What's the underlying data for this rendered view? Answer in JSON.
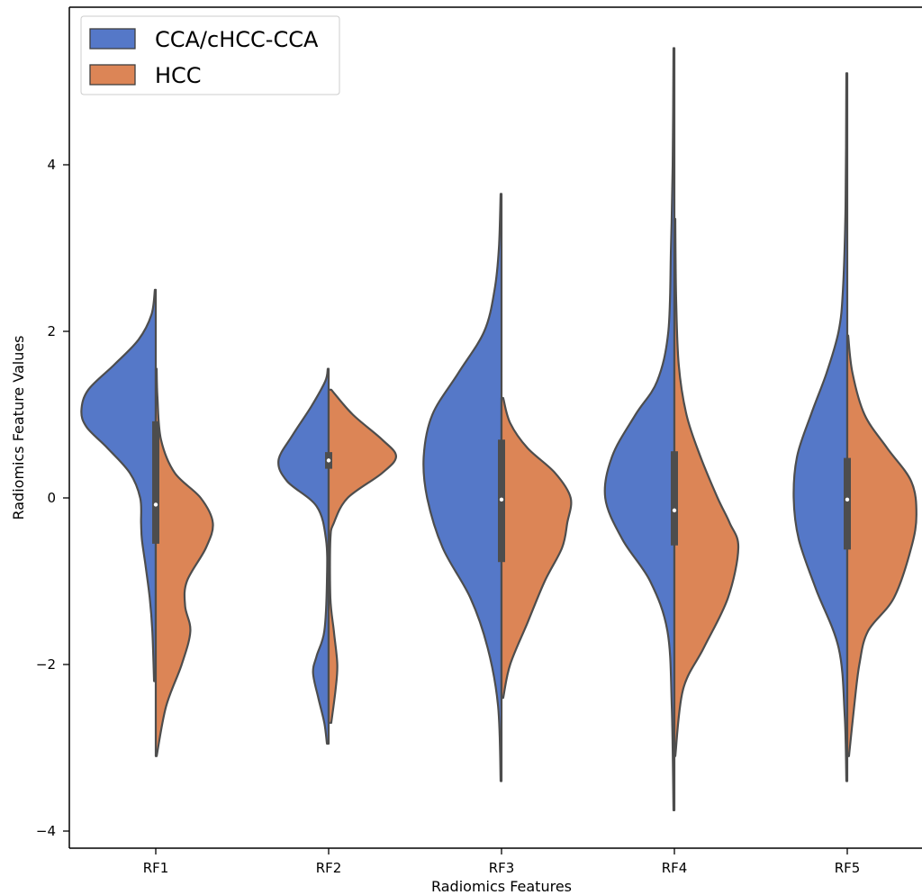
{
  "chart_data": {
    "type": "violin",
    "split": true,
    "xlabel": "Radiomics Features",
    "ylabel": "Radiomics Feature Values",
    "categories": [
      "RF1",
      "RF2",
      "RF3",
      "RF4",
      "RF5"
    ],
    "yticks": [
      -4,
      -2,
      0,
      2,
      4
    ],
    "ytick_labels": [
      "−4",
      "−2",
      "0",
      "2",
      "4"
    ],
    "ylim": [
      -4.1,
      5.95
    ],
    "grid": false,
    "legend": {
      "placement": "top-left",
      "entries": [
        {
          "label": "CCA/cHCC-CCA",
          "color": "#5578c8"
        },
        {
          "label": "HCC",
          "color": "#dc8556"
        }
      ]
    },
    "series": [
      {
        "name": "CCA/cHCC-CCA",
        "color": "#5578c8",
        "side": "left",
        "violins": [
          {
            "category": "RF1",
            "min": -2.2,
            "max": 2.5,
            "profile": [
              [
                -2.2,
                0.02
              ],
              [
                -1.6,
                0.04
              ],
              [
                -1.2,
                0.07
              ],
              [
                -0.8,
                0.12
              ],
              [
                -0.5,
                0.16
              ],
              [
                -0.3,
                0.17
              ],
              [
                0.0,
                0.18
              ],
              [
                0.3,
                0.3
              ],
              [
                0.6,
                0.56
              ],
              [
                0.85,
                0.8
              ],
              [
                1.05,
                0.86
              ],
              [
                1.3,
                0.78
              ],
              [
                1.6,
                0.48
              ],
              [
                1.9,
                0.2
              ],
              [
                2.2,
                0.05
              ],
              [
                2.5,
                0.01
              ]
            ]
          },
          {
            "category": "RF2",
            "min": -2.95,
            "max": 1.55,
            "profile": [
              [
                -2.95,
                0.02
              ],
              [
                -2.7,
                0.05
              ],
              [
                -2.4,
                0.12
              ],
              [
                -2.1,
                0.18
              ],
              [
                -1.9,
                0.14
              ],
              [
                -1.6,
                0.05
              ],
              [
                -1.0,
                0.02
              ],
              [
                -0.5,
                0.03
              ],
              [
                -0.1,
                0.14
              ],
              [
                0.2,
                0.48
              ],
              [
                0.45,
                0.58
              ],
              [
                0.75,
                0.42
              ],
              [
                1.1,
                0.2
              ],
              [
                1.4,
                0.04
              ],
              [
                1.55,
                0.01
              ]
            ]
          },
          {
            "category": "RF3",
            "min": -3.4,
            "max": 3.65,
            "profile": [
              [
                -3.4,
                0.01
              ],
              [
                -2.5,
                0.04
              ],
              [
                -1.8,
                0.16
              ],
              [
                -1.2,
                0.36
              ],
              [
                -0.6,
                0.68
              ],
              [
                0.0,
                0.86
              ],
              [
                0.5,
                0.9
              ],
              [
                1.0,
                0.8
              ],
              [
                1.5,
                0.5
              ],
              [
                2.0,
                0.2
              ],
              [
                2.5,
                0.08
              ],
              [
                3.0,
                0.03
              ],
              [
                3.65,
                0.01
              ]
            ]
          },
          {
            "category": "RF4",
            "min": -3.75,
            "max": 5.4,
            "profile": [
              [
                -3.75,
                0.01
              ],
              [
                -2.5,
                0.03
              ],
              [
                -1.6,
                0.08
              ],
              [
                -1.0,
                0.28
              ],
              [
                -0.5,
                0.6
              ],
              [
                0.0,
                0.8
              ],
              [
                0.5,
                0.72
              ],
              [
                1.0,
                0.45
              ],
              [
                1.4,
                0.2
              ],
              [
                2.0,
                0.07
              ],
              [
                3.0,
                0.04
              ],
              [
                4.0,
                0.02
              ],
              [
                5.4,
                0.01
              ]
            ]
          },
          {
            "category": "RF5",
            "min": -3.4,
            "max": 5.1,
            "profile": [
              [
                -3.4,
                0.01
              ],
              [
                -2.6,
                0.03
              ],
              [
                -1.8,
                0.1
              ],
              [
                -1.1,
                0.36
              ],
              [
                -0.5,
                0.56
              ],
              [
                0.0,
                0.62
              ],
              [
                0.5,
                0.58
              ],
              [
                1.0,
                0.42
              ],
              [
                1.5,
                0.24
              ],
              [
                2.0,
                0.1
              ],
              [
                2.5,
                0.05
              ],
              [
                3.5,
                0.02
              ],
              [
                5.1,
                0.01
              ]
            ]
          }
        ]
      },
      {
        "name": "HCC",
        "color": "#dc8556",
        "side": "right",
        "violins": [
          {
            "category": "RF1",
            "min": -3.1,
            "max": 1.55,
            "profile": [
              [
                -3.1,
                0.01
              ],
              [
                -2.5,
                0.12
              ],
              [
                -2.0,
                0.3
              ],
              [
                -1.6,
                0.4
              ],
              [
                -1.3,
                0.34
              ],
              [
                -1.0,
                0.36
              ],
              [
                -0.6,
                0.58
              ],
              [
                -0.3,
                0.66
              ],
              [
                0.0,
                0.52
              ],
              [
                0.3,
                0.22
              ],
              [
                0.7,
                0.06
              ],
              [
                1.2,
                0.02
              ],
              [
                1.55,
                0.01
              ]
            ]
          },
          {
            "category": "RF2",
            "min": -2.7,
            "max": 1.3,
            "profile": [
              [
                -2.7,
                0.03
              ],
              [
                -2.3,
                0.08
              ],
              [
                -2.0,
                0.1
              ],
              [
                -1.6,
                0.06
              ],
              [
                -1.2,
                0.02
              ],
              [
                -0.5,
                0.02
              ],
              [
                -0.3,
                0.06
              ],
              [
                0.0,
                0.22
              ],
              [
                0.3,
                0.62
              ],
              [
                0.5,
                0.78
              ],
              [
                0.7,
                0.62
              ],
              [
                1.0,
                0.28
              ],
              [
                1.3,
                0.03
              ]
            ]
          },
          {
            "category": "RF3",
            "min": -2.4,
            "max": 1.2,
            "profile": [
              [
                -2.4,
                0.02
              ],
              [
                -2.0,
                0.1
              ],
              [
                -1.5,
                0.3
              ],
              [
                -1.0,
                0.5
              ],
              [
                -0.6,
                0.7
              ],
              [
                -0.3,
                0.76
              ],
              [
                0.0,
                0.8
              ],
              [
                0.3,
                0.62
              ],
              [
                0.6,
                0.3
              ],
              [
                0.9,
                0.1
              ],
              [
                1.2,
                0.02
              ]
            ]
          },
          {
            "category": "RF4",
            "min": -3.1,
            "max": 3.35,
            "profile": [
              [
                -3.1,
                0.01
              ],
              [
                -2.3,
                0.1
              ],
              [
                -1.8,
                0.34
              ],
              [
                -1.2,
                0.62
              ],
              [
                -0.6,
                0.74
              ],
              [
                -0.3,
                0.64
              ],
              [
                0.0,
                0.5
              ],
              [
                0.5,
                0.3
              ],
              [
                1.0,
                0.14
              ],
              [
                1.6,
                0.05
              ],
              [
                2.4,
                0.02
              ],
              [
                3.35,
                0.01
              ]
            ]
          },
          {
            "category": "RF5",
            "min": -3.1,
            "max": 1.95,
            "profile": [
              [
                -3.1,
                0.02
              ],
              [
                -2.5,
                0.08
              ],
              [
                -2.0,
                0.14
              ],
              [
                -1.6,
                0.24
              ],
              [
                -1.2,
                0.54
              ],
              [
                -0.6,
                0.74
              ],
              [
                -0.2,
                0.8
              ],
              [
                0.2,
                0.74
              ],
              [
                0.6,
                0.46
              ],
              [
                1.0,
                0.2
              ],
              [
                1.5,
                0.06
              ],
              [
                1.95,
                0.01
              ]
            ]
          }
        ]
      }
    ],
    "boxes": [
      {
        "category": "RF1",
        "q1": -0.55,
        "median": -0.08,
        "q3": 0.92
      },
      {
        "category": "RF2",
        "q1": 0.35,
        "median": 0.45,
        "q3": 0.55
      },
      {
        "category": "RF3",
        "q1": -0.77,
        "median": -0.02,
        "q3": 0.7
      },
      {
        "category": "RF4",
        "q1": -0.57,
        "median": -0.15,
        "q3": 0.56
      },
      {
        "category": "RF5",
        "q1": -0.62,
        "median": -0.02,
        "q3": 0.48
      }
    ]
  }
}
